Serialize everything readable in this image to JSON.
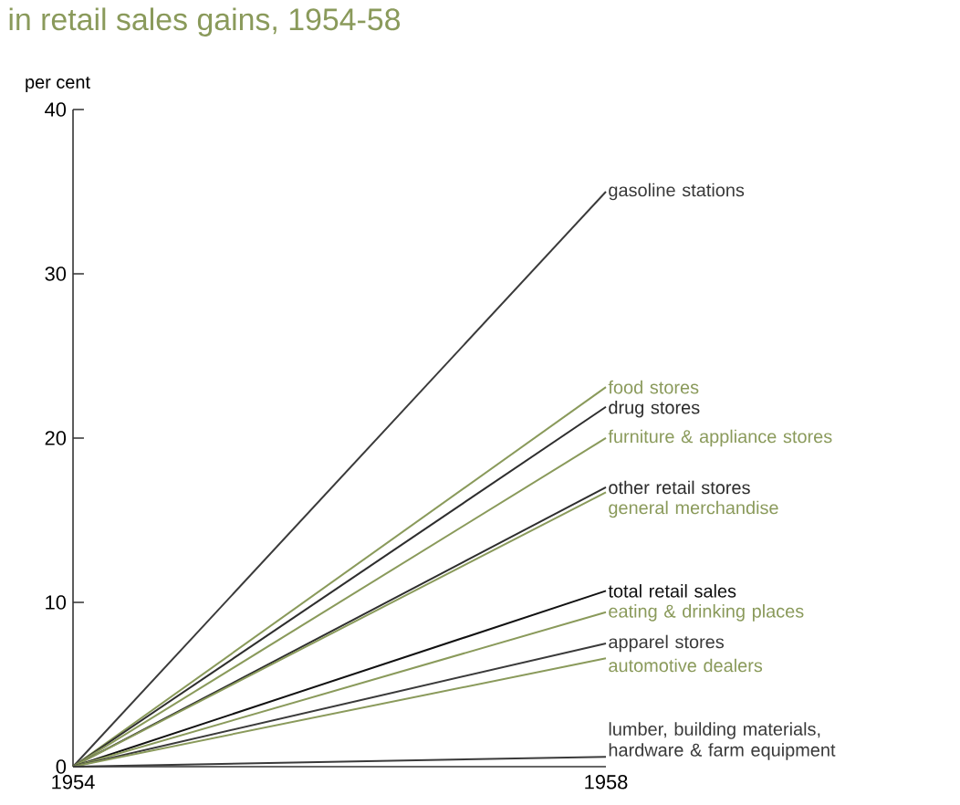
{
  "chart_data": {
    "type": "line",
    "title": "in retail sales gains, 1954-58",
    "ylabel": "per cent",
    "x": [
      1954,
      1958
    ],
    "xlim": [
      1954,
      1958
    ],
    "xticks": [
      1954,
      1958
    ],
    "ylim": [
      0,
      40
    ],
    "yticks": [
      0,
      10,
      20,
      30,
      40
    ],
    "legend": false,
    "grid": false,
    "marker": "none",
    "line_style": "solid",
    "series": [
      {
        "name": "gasoline stations",
        "color": "#3a3a3a",
        "values": [
          0,
          35.0
        ]
      },
      {
        "name": "food stores",
        "color": "#8a9a5b",
        "values": [
          0,
          23.1
        ]
      },
      {
        "name": "drug stores",
        "color": "#2e2e2e",
        "values": [
          0,
          21.9
        ]
      },
      {
        "name": "furniture & appliance stores",
        "color": "#8a9a5b",
        "values": [
          0,
          20.0
        ]
      },
      {
        "name": "other retail stores",
        "color": "#2e2e2e",
        "values": [
          0,
          17.0
        ]
      },
      {
        "name": "general merchandise",
        "color": "#8a9a5b",
        "values": [
          0,
          16.7
        ]
      },
      {
        "name": "total retail sales",
        "color": "#111111",
        "values": [
          0,
          10.7
        ]
      },
      {
        "name": "eating & drinking places",
        "color": "#8a9a5b",
        "values": [
          0,
          9.4
        ]
      },
      {
        "name": "apparel stores",
        "color": "#3a3a3a",
        "values": [
          0,
          7.5
        ]
      },
      {
        "name": "automotive dealers",
        "color": "#8a9a5b",
        "values": [
          0,
          6.6
        ]
      },
      {
        "name": "lumber, building materials, hardware & farm equipment",
        "color": "#3a3a3a",
        "values": [
          0,
          0.6
        ]
      }
    ]
  }
}
